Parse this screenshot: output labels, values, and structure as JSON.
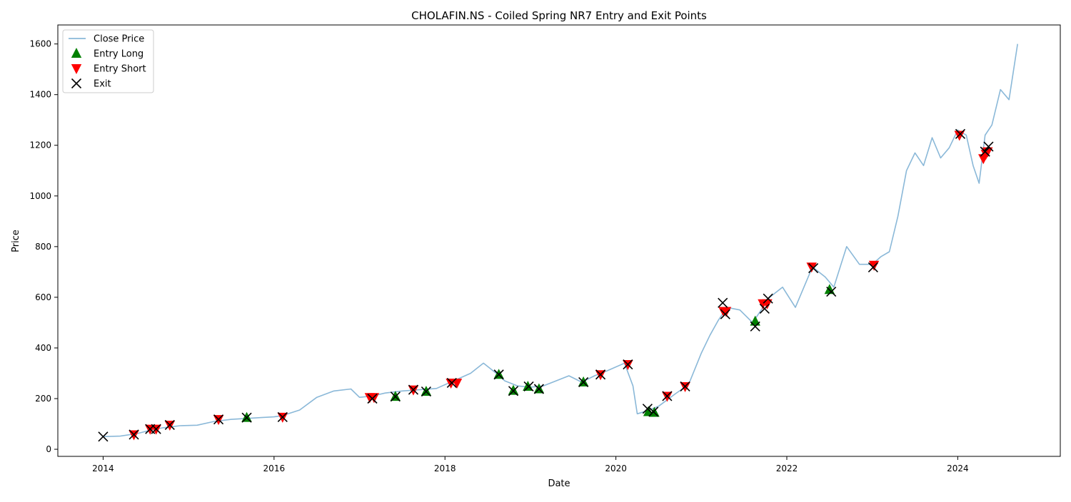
{
  "chart_data": {
    "type": "line",
    "title": "CHOLAFIN.NS - Coiled Spring NR7 Entry and Exit Points",
    "xlabel": "Date",
    "ylabel": "Price",
    "xlim": [
      2013.47,
      2025.2
    ],
    "ylim": [
      -28,
      1675
    ],
    "x_ticks": [
      2014,
      2016,
      2018,
      2020,
      2022,
      2024
    ],
    "x_tick_labels": [
      "2014",
      "2016",
      "2018",
      "2020",
      "2022",
      "2024"
    ],
    "y_ticks": [
      0,
      200,
      400,
      600,
      800,
      1000,
      1200,
      1400,
      1600
    ],
    "y_tick_labels": [
      "0",
      "200",
      "400",
      "600",
      "800",
      "1000",
      "1200",
      "1400",
      "1600"
    ],
    "grid": false,
    "legend_position": "top-left",
    "legend": [
      {
        "label": "Close Price",
        "marker": "line",
        "color": "#8ab8d8"
      },
      {
        "label": "Entry Long",
        "marker": "triangle-up",
        "color": "#008000"
      },
      {
        "label": "Entry Short",
        "marker": "triangle-down",
        "color": "#ff0000"
      },
      {
        "label": "Exit",
        "marker": "x",
        "color": "#000000"
      }
    ],
    "series": [
      {
        "name": "Close Price",
        "color": "#8ab8d8",
        "x": [
          2014.0,
          2014.2,
          2014.4,
          2014.55,
          2014.7,
          2014.9,
          2015.1,
          2015.3,
          2015.5,
          2015.7,
          2015.85,
          2016.0,
          2016.1,
          2016.3,
          2016.5,
          2016.7,
          2016.9,
          2017.0,
          2017.15,
          2017.3,
          2017.5,
          2017.7,
          2017.9,
          2018.1,
          2018.3,
          2018.45,
          2018.6,
          2018.7,
          2018.85,
          2019.0,
          2019.15,
          2019.3,
          2019.45,
          2019.6,
          2019.75,
          2019.9,
          2020.1,
          2020.2,
          2020.25,
          2020.35,
          2020.5,
          2020.7,
          2020.85,
          2021.0,
          2021.1,
          2021.2,
          2021.3,
          2021.45,
          2021.6,
          2021.7,
          2021.8,
          2021.95,
          2022.1,
          2022.3,
          2022.45,
          2022.55,
          2022.7,
          2022.85,
          2023.0,
          2023.1,
          2023.2,
          2023.3,
          2023.4,
          2023.5,
          2023.6,
          2023.7,
          2023.8,
          2023.9,
          2024.0,
          2024.1,
          2024.18,
          2024.25,
          2024.32,
          2024.4,
          2024.5,
          2024.6,
          2024.7
        ],
        "y": [
          50,
          52,
          62,
          75,
          85,
          93,
          95,
          110,
          118,
          122,
          125,
          128,
          133,
          155,
          205,
          230,
          238,
          205,
          210,
          222,
          230,
          235,
          240,
          270,
          300,
          340,
          300,
          270,
          250,
          245,
          250,
          270,
          290,
          265,
          290,
          310,
          340,
          250,
          140,
          150,
          170,
          220,
          255,
          380,
          450,
          510,
          560,
          550,
          500,
          550,
          600,
          640,
          560,
          720,
          680,
          640,
          800,
          730,
          730,
          760,
          780,
          920,
          1100,
          1170,
          1120,
          1230,
          1150,
          1190,
          1260,
          1240,
          1120,
          1050,
          1240,
          1280,
          1420,
          1380,
          1600
        ]
      }
    ],
    "entry_long": {
      "x": [
        2015.68,
        2017.42,
        2017.78,
        2018.63,
        2018.8,
        2018.97,
        2019.1,
        2019.62,
        2020.38,
        2020.45,
        2021.63,
        2022.5
      ],
      "y": [
        125,
        208,
        228,
        295,
        232,
        248,
        238,
        265,
        148,
        145,
        505,
        630
      ]
    },
    "entry_short": {
      "x": [
        2014.36,
        2014.55,
        2014.62,
        2014.78,
        2015.35,
        2016.1,
        2017.12,
        2017.17,
        2017.63,
        2018.07,
        2018.14,
        2019.82,
        2020.14,
        2020.6,
        2020.81,
        2021.26,
        2021.29,
        2021.72,
        2021.77,
        2022.29,
        2023.02,
        2024.02,
        2024.3,
        2024.33,
        2024.35
      ],
      "y": [
        58,
        80,
        80,
        96,
        118,
        127,
        205,
        205,
        235,
        262,
        262,
        295,
        335,
        210,
        248,
        545,
        545,
        575,
        575,
        720,
        727,
        1240,
        1148,
        1165,
        1175
      ]
    },
    "exit": {
      "x": [
        2014.0,
        2014.36,
        2014.55,
        2014.62,
        2014.78,
        2015.35,
        2015.68,
        2016.1,
        2017.15,
        2017.42,
        2017.63,
        2017.78,
        2018.08,
        2018.63,
        2018.8,
        2018.98,
        2019.1,
        2019.62,
        2019.82,
        2020.14,
        2020.37,
        2020.44,
        2020.6,
        2020.81,
        2021.25,
        2021.28,
        2021.63,
        2021.74,
        2021.78,
        2022.31,
        2022.52,
        2023.01,
        2024.03,
        2024.32,
        2024.36
      ],
      "y": [
        50,
        58,
        80,
        80,
        96,
        118,
        125,
        127,
        200,
        208,
        235,
        228,
        262,
        295,
        230,
        248,
        238,
        265,
        295,
        335,
        160,
        148,
        210,
        248,
        578,
        533,
        485,
        555,
        595,
        715,
        622,
        718,
        1245,
        1175,
        1195
      ]
    }
  }
}
